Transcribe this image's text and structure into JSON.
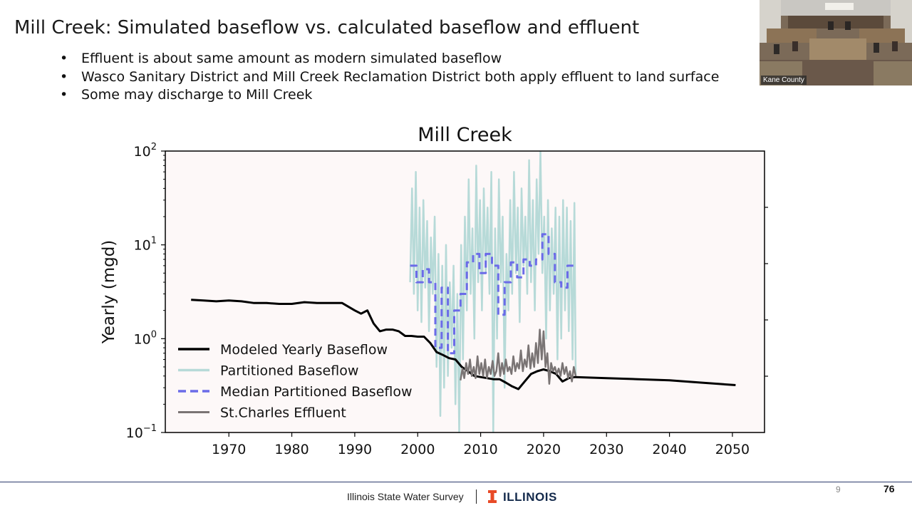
{
  "slide": {
    "title": "Mill Creek: Simulated baseflow vs. calculated baseflow and effluent",
    "bullets": [
      "Effluent is about same amount as modern simulated baseflow",
      "Wasco Sanitary District and Mill Creek Reclamation District both apply effluent to land surface",
      "Some may discharge to Mill Creek"
    ]
  },
  "video": {
    "caption": "Kane County"
  },
  "footer": {
    "org": "Illinois State Water Survey",
    "brand": "ILLINOIS",
    "page_small": "9",
    "page_big": "76",
    "logo_color": "#e84a27",
    "brand_color": "#13294b"
  },
  "chart_data": {
    "type": "line",
    "title": "Mill Creek",
    "xlabel": "",
    "ylabel": "Yearly (mgd)",
    "y_scale": "log",
    "ylim": [
      0.1,
      100
    ],
    "xlim": [
      1959.9,
      2055.1
    ],
    "x_ticks": [
      1970,
      1980,
      1990,
      2000,
      2010,
      2020,
      2030,
      2040,
      2050
    ],
    "y_ticks": [
      {
        "value": 0.1,
        "base": "10",
        "exp": "−1"
      },
      {
        "value": 1,
        "base": "10",
        "exp": "0"
      },
      {
        "value": 10,
        "base": "10",
        "exp": "1"
      },
      {
        "value": 100,
        "base": "10",
        "exp": "2"
      }
    ],
    "legend_position": "lower-left",
    "grid": false,
    "plot_background": "#fdf8f8",
    "series": [
      {
        "name": "Modeled Yearly Baseflow",
        "color": "#000000",
        "style": "solid",
        "x": [
          1964,
          1966,
          1968,
          1970,
          1972,
          1974,
          1976,
          1978,
          1980,
          1982,
          1984,
          1986,
          1988,
          1990,
          1991,
          1992,
          1993,
          1994,
          1995,
          1996,
          1997,
          1998,
          1999,
          2000,
          2001,
          2002,
          2003,
          2004,
          2005,
          2006,
          2007,
          2008,
          2009,
          2010,
          2011,
          2012,
          2013,
          2014,
          2015,
          2016,
          2017,
          2018,
          2019,
          2020,
          2021,
          2022,
          2023,
          2024,
          2025,
          2030,
          2035,
          2040,
          2045,
          2050.5
        ],
        "y": [
          2.6,
          2.55,
          2.5,
          2.55,
          2.5,
          2.4,
          2.4,
          2.35,
          2.35,
          2.45,
          2.4,
          2.4,
          2.4,
          2.0,
          1.85,
          2.0,
          1.45,
          1.2,
          1.25,
          1.25,
          1.2,
          1.07,
          1.07,
          1.05,
          1.05,
          0.9,
          0.72,
          0.67,
          0.62,
          0.6,
          0.5,
          0.45,
          0.4,
          0.39,
          0.38,
          0.37,
          0.37,
          0.34,
          0.31,
          0.29,
          0.35,
          0.42,
          0.45,
          0.47,
          0.45,
          0.42,
          0.35,
          0.38,
          0.39,
          0.38,
          0.37,
          0.36,
          0.34,
          0.32
        ]
      },
      {
        "name": "Partitioned Baseflow",
        "color": "#b7dad8",
        "style": "solid",
        "x": [
          1998.8,
          1999.1,
          1999.4,
          1999.7,
          2000.0,
          2000.3,
          2000.6,
          2000.9,
          2001.2,
          2001.5,
          2001.8,
          2002.1,
          2002.4,
          2002.7,
          2003.0,
          2003.3,
          2003.6,
          2003.9,
          2004.2,
          2004.5,
          2004.8,
          2005.1,
          2005.4,
          2005.7,
          2006.0,
          2006.3,
          2006.6,
          2006.9,
          2007.2,
          2007.5,
          2007.8,
          2008.1,
          2008.4,
          2008.7,
          2009.0,
          2009.3,
          2009.6,
          2009.9,
          2010.2,
          2010.5,
          2010.8,
          2011.1,
          2011.4,
          2011.7,
          2012.0,
          2012.3,
          2012.6,
          2012.9,
          2013.2,
          2013.5,
          2013.8,
          2014.1,
          2014.4,
          2014.7,
          2015.0,
          2015.3,
          2015.6,
          2015.9,
          2016.2,
          2016.5,
          2016.8,
          2017.1,
          2017.4,
          2017.7,
          2018.0,
          2018.3,
          2018.6,
          2018.9,
          2019.2,
          2019.5,
          2019.8,
          2020.1,
          2020.4,
          2020.7,
          2021.0,
          2021.3,
          2021.6,
          2021.9,
          2022.2,
          2022.5,
          2022.8,
          2023.1,
          2023.4,
          2023.7,
          2024.0,
          2024.3,
          2024.6,
          2024.9,
          2025.1
        ],
        "y": [
          4,
          40,
          3,
          60,
          2,
          25,
          1.5,
          30,
          3.5,
          18,
          1.2,
          12,
          3,
          20,
          0.5,
          8,
          0.15,
          6,
          0.3,
          10,
          0.4,
          4,
          0.8,
          6,
          0.2,
          3,
          0.1,
          10,
          0.6,
          20,
          2,
          50,
          3,
          15,
          1,
          70,
          4,
          30,
          2,
          40,
          5,
          25,
          3,
          60,
          0.1,
          15,
          1,
          50,
          4,
          20,
          0.3,
          8,
          2,
          30,
          3,
          60,
          5,
          25,
          1.5,
          40,
          6,
          20,
          3,
          80,
          4,
          30,
          2,
          50,
          8,
          100,
          5,
          20,
          1,
          30,
          2,
          15,
          3,
          25,
          0.6,
          20,
          1,
          30,
          2,
          25,
          1.2,
          18,
          0.6,
          28,
          0.4
        ]
      },
      {
        "name": "Median Partitioned Baseflow",
        "color": "#6b6be8",
        "style": "dashed",
        "x": [
          1998.8,
          1999.8,
          1999.8,
          2000.8,
          2000.8,
          2001.8,
          2001.8,
          2002.8,
          2002.8,
          2003.8,
          2003.8,
          2004.8,
          2004.8,
          2005.8,
          2005.8,
          2006.8,
          2006.8,
          2007.8,
          2007.8,
          2008.8,
          2008.8,
          2009.8,
          2009.8,
          2010.8,
          2010.8,
          2011.8,
          2011.8,
          2012.8,
          2012.8,
          2013.8,
          2013.8,
          2014.8,
          2014.8,
          2015.8,
          2015.8,
          2016.8,
          2016.8,
          2017.8,
          2017.8,
          2018.8,
          2018.8,
          2019.8,
          2019.8,
          2020.8,
          2020.8,
          2021.8,
          2021.8,
          2022.8,
          2022.8,
          2023.8,
          2023.8,
          2024.8,
          2024.8
        ],
        "y": [
          6,
          6,
          4,
          4,
          5.5,
          5.5,
          4,
          4,
          0.8,
          0.8,
          3.5,
          3.5,
          0.7,
          0.7,
          2,
          2,
          3,
          3,
          6.5,
          6.5,
          8,
          8,
          5,
          5,
          8,
          8,
          6,
          6,
          1.8,
          1.8,
          4,
          4,
          6.5,
          6.5,
          4.5,
          4.5,
          7,
          7,
          6,
          6,
          7,
          7,
          13,
          13,
          8,
          8,
          4,
          4,
          3.5,
          3.5,
          6,
          6,
          6.5
        ]
      },
      {
        "name": "St.Charles Effluent",
        "color": "#7a7474",
        "style": "solid",
        "x": [
          2006.8,
          2007.1,
          2007.4,
          2007.7,
          2008.0,
          2008.3,
          2008.6,
          2008.9,
          2009.2,
          2009.5,
          2009.8,
          2010.1,
          2010.4,
          2010.7,
          2011.0,
          2011.3,
          2011.6,
          2011.9,
          2012.2,
          2012.5,
          2012.8,
          2013.1,
          2013.4,
          2013.7,
          2014.0,
          2014.3,
          2014.6,
          2014.9,
          2015.2,
          2015.5,
          2015.8,
          2016.1,
          2016.4,
          2016.7,
          2017.0,
          2017.3,
          2017.6,
          2017.9,
          2018.2,
          2018.5,
          2018.8,
          2019.1,
          2019.4,
          2019.7,
          2020.0,
          2020.3,
          2020.6,
          2020.9,
          2021.2,
          2021.5,
          2021.8,
          2022.1,
          2022.4,
          2022.7,
          2023.0,
          2023.3,
          2023.6,
          2023.9,
          2024.2,
          2024.5,
          2024.8,
          2025.1
        ],
        "y": [
          0.36,
          0.48,
          0.38,
          0.55,
          0.42,
          0.6,
          0.4,
          0.5,
          0.38,
          0.65,
          0.42,
          0.55,
          0.4,
          0.6,
          0.38,
          0.5,
          0.42,
          0.58,
          0.4,
          0.45,
          0.7,
          0.4,
          0.55,
          0.42,
          0.6,
          0.45,
          0.5,
          0.42,
          0.65,
          0.45,
          0.55,
          0.48,
          0.75,
          0.45,
          0.6,
          0.5,
          0.85,
          0.48,
          0.7,
          0.5,
          0.9,
          0.55,
          1.25,
          0.6,
          1.2,
          0.5,
          0.7,
          0.33,
          0.55,
          0.45,
          0.5,
          0.42,
          0.48,
          0.4,
          0.55,
          0.42,
          0.5,
          0.38,
          0.45,
          0.35,
          0.5,
          0.4
        ]
      }
    ]
  }
}
